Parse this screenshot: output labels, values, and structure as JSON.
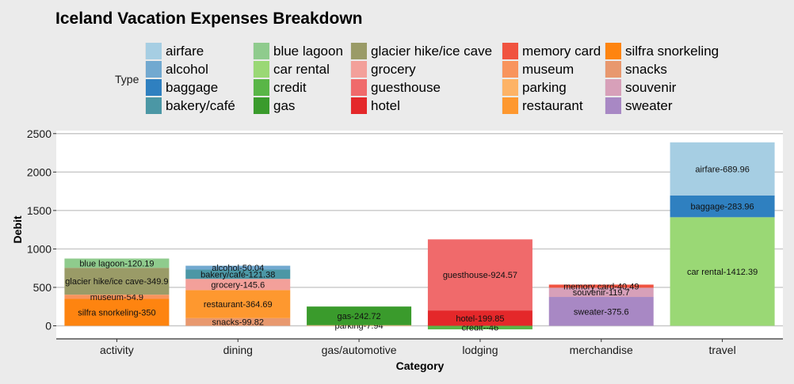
{
  "chart_data": {
    "type": "bar",
    "stacked": true,
    "title": "Iceland Vacation Expenses Breakdown",
    "xlabel": "Category",
    "ylabel": "Debit",
    "legend_title": "Type",
    "legend_position": "top",
    "ylim": [
      -100,
      2500
    ],
    "yticks": [
      0,
      500,
      1000,
      1500,
      2000,
      2500
    ],
    "grid": true,
    "categories": [
      "activity",
      "dining",
      "gas/automotive",
      "lodging",
      "merchandise",
      "travel"
    ],
    "legend": [
      {
        "name": "airfare",
        "color": "#a6cee3"
      },
      {
        "name": "alcohol",
        "color": "#72a9d0"
      },
      {
        "name": "baggage",
        "color": "#2f80c0"
      },
      {
        "name": "bakery/café",
        "color": "#4b97a5"
      },
      {
        "name": "blue lagoon",
        "color": "#8fcb8d"
      },
      {
        "name": "car rental",
        "color": "#9ad875"
      },
      {
        "name": "credit",
        "color": "#59b647"
      },
      {
        "name": "gas",
        "color": "#3a9b2c"
      },
      {
        "name": "glacier hike/ice cave",
        "color": "#9a9b67"
      },
      {
        "name": "grocery",
        "color": "#f3a09a"
      },
      {
        "name": "guesthouse",
        "color": "#f06a6b"
      },
      {
        "name": "hotel",
        "color": "#e4282a"
      },
      {
        "name": "memory card",
        "color": "#f05340"
      },
      {
        "name": "museum",
        "color": "#f8945d"
      },
      {
        "name": "parking",
        "color": "#fdb366"
      },
      {
        "name": "restaurant",
        "color": "#fe982f"
      },
      {
        "name": "silfra snorkeling",
        "color": "#fe8410"
      },
      {
        "name": "snacks",
        "color": "#e8986e"
      },
      {
        "name": "souvenir",
        "color": "#d7a0b9"
      },
      {
        "name": "sweater",
        "color": "#a888c4"
      }
    ],
    "bars": [
      {
        "category": "activity",
        "segments": [
          {
            "type": "silfra snorkeling",
            "value": 350,
            "label": "silfra snorkeling-350"
          },
          {
            "type": "museum",
            "value": 54.9,
            "label": "museum-54.9"
          },
          {
            "type": "glacier hike/ice cave",
            "value": 349.9,
            "label": "glacier hike/ice cave-349.9"
          },
          {
            "type": "blue lagoon",
            "value": 120.19,
            "label": "blue lagoon-120.19"
          }
        ]
      },
      {
        "category": "dining",
        "segments": [
          {
            "type": "snacks",
            "value": 99.82,
            "label": "snacks-99.82"
          },
          {
            "type": "restaurant",
            "value": 364.69,
            "label": "restaurant-364.69"
          },
          {
            "type": "grocery",
            "value": 145.6,
            "label": "grocery-145.6"
          },
          {
            "type": "bakery/café",
            "value": 121.38,
            "label": "bakery/café-121.38"
          },
          {
            "type": "alcohol",
            "value": 50.04,
            "label": "alcohol-50.04"
          }
        ]
      },
      {
        "category": "gas/automotive",
        "segments": [
          {
            "type": "parking",
            "value": 7.94,
            "label": "parking-7.94"
          },
          {
            "type": "gas",
            "value": 242.72,
            "label": "gas-242.72"
          }
        ]
      },
      {
        "category": "lodging",
        "segments": [
          {
            "type": "credit",
            "value": -46,
            "label": "credit--46"
          },
          {
            "type": "hotel",
            "value": 199.85,
            "label": "hotel-199.85"
          },
          {
            "type": "guesthouse",
            "value": 924.57,
            "label": "guesthouse-924.57"
          }
        ]
      },
      {
        "category": "merchandise",
        "segments": [
          {
            "type": "sweater",
            "value": 375.6,
            "label": "sweater-375.6"
          },
          {
            "type": "souvenir",
            "value": 119.7,
            "label": "souvenir-119.7"
          },
          {
            "type": "memory card",
            "value": 40.49,
            "label": "memory card-40.49"
          }
        ]
      },
      {
        "category": "travel",
        "segments": [
          {
            "type": "car rental",
            "value": 1412.39,
            "label": "car rental-1412.39"
          },
          {
            "type": "baggage",
            "value": 283.96,
            "label": "baggage-283.96"
          },
          {
            "type": "airfare",
            "value": 689.96,
            "label": "airfare-689.96"
          }
        ]
      }
    ]
  }
}
